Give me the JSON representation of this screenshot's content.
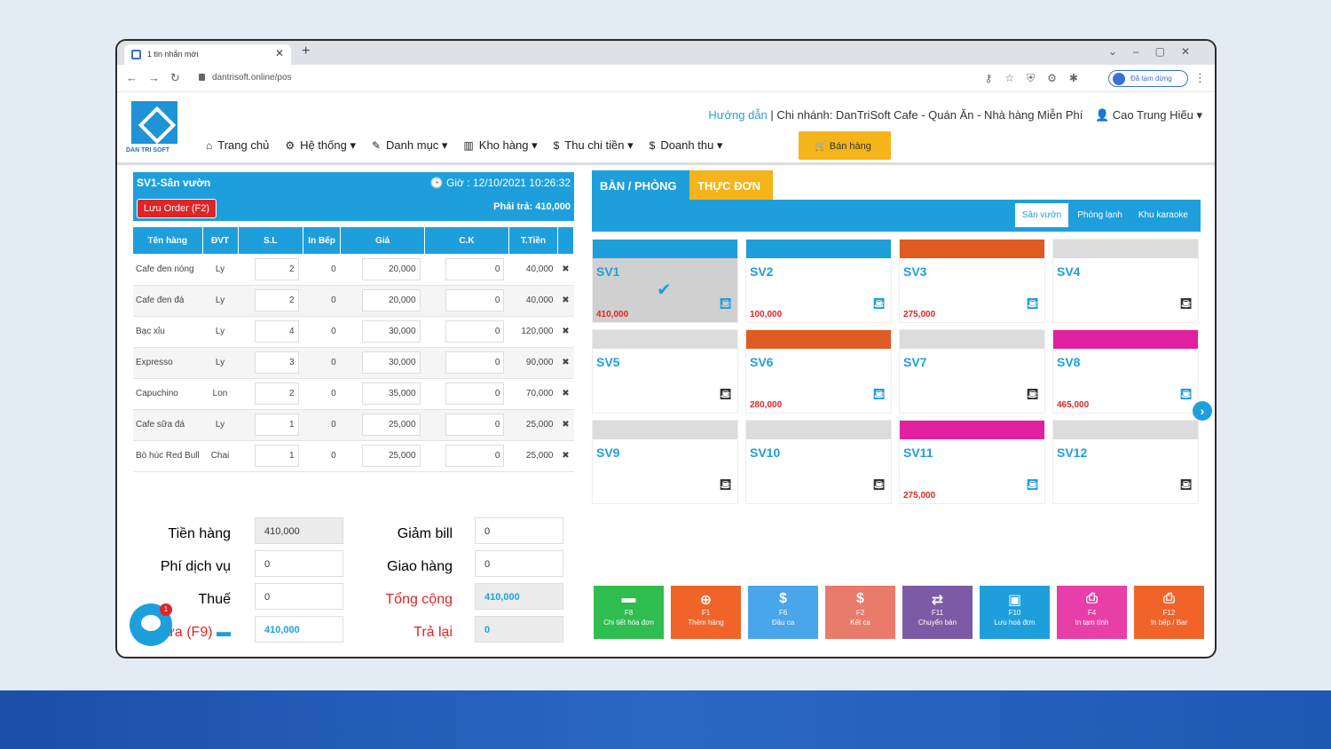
{
  "browser": {
    "tab_title": "1 tin nhắn mới",
    "url": "dantrisoft.online/pos",
    "pause_label": "Đã tạm dừng"
  },
  "header": {
    "guide": "Hướng dẫn",
    "branch": "Chi nhánh: DanTriSoft Cafe - Quán Ăn - Nhà hàng Miễn Phí",
    "user": "Cao Trung Hiếu",
    "logo_text": "DAN TRI SOFT",
    "menu": [
      "Trang chủ",
      "Hệ thống",
      "Danh mục",
      "Kho hàng",
      "Thu chi tiền",
      "Doanh thu"
    ],
    "sell_button": "Bán hàng"
  },
  "order": {
    "table_name": "SV1-Sân vườn",
    "time": "Giờ : 12/10/2021 10:26:32",
    "save_button": "Lưu Order (F2)",
    "must_pay": "Phải trả: 410,000",
    "columns": [
      "Tên hàng",
      "ĐVT",
      "S.L",
      "In Bếp",
      "Giá",
      "C.K",
      "T.Tiền"
    ],
    "rows": [
      {
        "name": "Cafe đen nóng",
        "unit": "Ly",
        "qty": "2",
        "kitchen": "0",
        "price": "20,000",
        "discount": "0",
        "total": "40,000"
      },
      {
        "name": "Cafe đen đá",
        "unit": "Ly",
        "qty": "2",
        "kitchen": "0",
        "price": "20,000",
        "discount": "0",
        "total": "40,000"
      },
      {
        "name": "Bạc xỉu",
        "unit": "Ly",
        "qty": "4",
        "kitchen": "0",
        "price": "30,000",
        "discount": "0",
        "total": "120,000"
      },
      {
        "name": "Expresso",
        "unit": "Ly",
        "qty": "3",
        "kitchen": "0",
        "price": "30,000",
        "discount": "0",
        "total": "90,000"
      },
      {
        "name": "Capuchino",
        "unit": "Lon",
        "qty": "2",
        "kitchen": "0",
        "price": "35,000",
        "discount": "0",
        "total": "70,000"
      },
      {
        "name": "Cafe sữa đá",
        "unit": "Ly",
        "qty": "1",
        "kitchen": "0",
        "price": "25,000",
        "discount": "0",
        "total": "25,000"
      },
      {
        "name": "Bò húc Red Bull",
        "unit": "Chai",
        "qty": "1",
        "kitchen": "0",
        "price": "25,000",
        "discount": "0",
        "total": "25,000"
      }
    ]
  },
  "totals": {
    "goods_label": "Tiền hàng",
    "goods_value": "410,000",
    "service_label": "Phí dịch vụ",
    "service_value": "0",
    "tax_label": "Thuế",
    "tax_value": "0",
    "paid_label": "đưa (F9)",
    "paid_value": "410,000",
    "bill_discount_label": "Giảm bill",
    "bill_discount_value": "0",
    "delivery_label": "Giao hàng",
    "delivery_value": "0",
    "grand_label": "Tổng cộng",
    "grand_value": "410,000",
    "change_label": "Trả lại",
    "change_value": "0",
    "chat_badge": "1"
  },
  "tables_panel": {
    "tab_rooms": "BÀN / PHÒNG",
    "tab_menu": "THỰC ĐƠN",
    "zones": [
      "Sân vườn",
      "Phòng lạnh",
      "Khu karaoke"
    ],
    "tables": [
      {
        "name": "SV1",
        "amount": "410,000",
        "status_color": "#1e9fdc",
        "occupied": true,
        "selected": true
      },
      {
        "name": "SV2",
        "amount": "100,000",
        "status_color": "#1e9fdc",
        "occupied": true,
        "selected": false
      },
      {
        "name": "SV3",
        "amount": "275,000",
        "status_color": "#e05a24",
        "occupied": true,
        "selected": false
      },
      {
        "name": "SV4",
        "amount": "",
        "status_color": "#dcdcdc",
        "occupied": false,
        "selected": false
      },
      {
        "name": "SV5",
        "amount": "",
        "status_color": "#dcdcdc",
        "occupied": false,
        "selected": false
      },
      {
        "name": "SV6",
        "amount": "280,000",
        "status_color": "#e05a24",
        "occupied": true,
        "selected": false
      },
      {
        "name": "SV7",
        "amount": "",
        "status_color": "#dcdcdc",
        "occupied": false,
        "selected": false
      },
      {
        "name": "SV8",
        "amount": "465,000",
        "status_color": "#e020a0",
        "occupied": true,
        "selected": false
      },
      {
        "name": "SV9",
        "amount": "",
        "status_color": "#dcdcdc",
        "occupied": false,
        "selected": false
      },
      {
        "name": "SV10",
        "amount": "",
        "status_color": "#dcdcdc",
        "occupied": false,
        "selected": false
      },
      {
        "name": "SV11",
        "amount": "275,000",
        "status_color": "#e020a0",
        "occupied": true,
        "selected": false
      },
      {
        "name": "SV12",
        "amount": "",
        "status_color": "#dcdcdc",
        "occupied": false,
        "selected": false
      }
    ]
  },
  "function_keys": [
    {
      "key": "F8",
      "label": "Chi tiết hóa đơn",
      "icon": "folder-icon",
      "color": "#2ebd4e"
    },
    {
      "key": "F1",
      "label": "Thêm hàng",
      "icon": "plus-icon",
      "color": "#f0642a"
    },
    {
      "key": "F6",
      "label": "Đầu ca",
      "icon": "dollar-icon",
      "color": "#4aa6ea"
    },
    {
      "key": "F2",
      "label": "Kết ca",
      "icon": "dollar-icon",
      "color": "#ea7a6a"
    },
    {
      "key": "F11",
      "label": "Chuyển bàn",
      "icon": "swap-icon",
      "color": "#7d5aa6"
    },
    {
      "key": "F10",
      "label": "Lưu hoá đơn",
      "icon": "save-icon",
      "color": "#1e9fdc"
    },
    {
      "key": "F4",
      "label": "In tạm tính",
      "icon": "print-icon",
      "color": "#e83ea8"
    },
    {
      "key": "F12",
      "label": "In bếp / Bar",
      "icon": "print-icon",
      "color": "#f0642a"
    }
  ]
}
